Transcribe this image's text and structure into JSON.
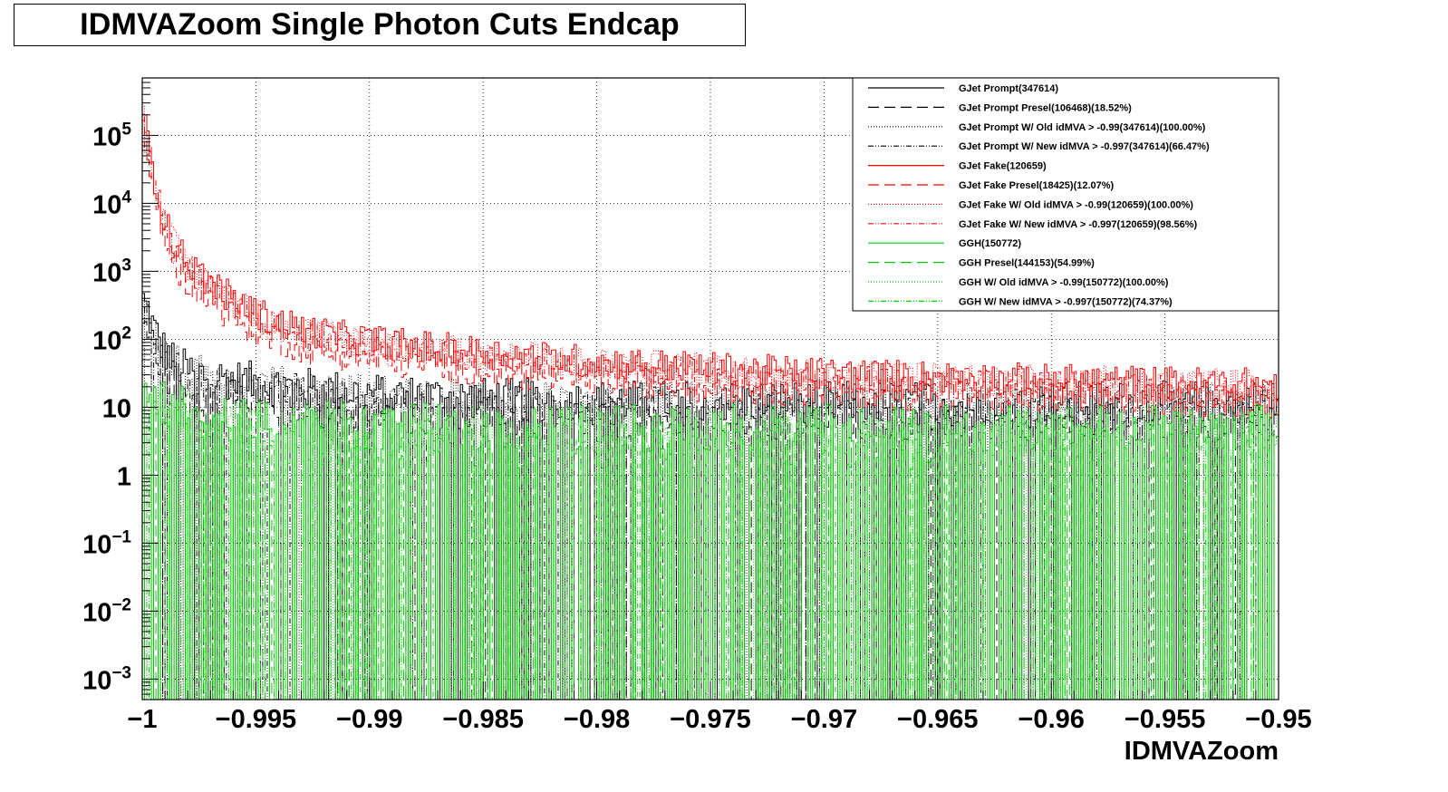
{
  "title": "IDMVAZoom Single Photon Cuts Endcap",
  "chart_data": {
    "type": "histogram",
    "title": "IDMVAZoom Single Photon Cuts Endcap",
    "xlabel": "IDMVAZoom",
    "ylabel": "",
    "xlim": [
      -1,
      -0.95
    ],
    "ylim": [
      0.0005,
      700000
    ],
    "y_scale": "log",
    "grid": true,
    "legend_position": "top-right",
    "x_ticks": [
      {
        "value": -1,
        "label": "−1"
      },
      {
        "value": -0.995,
        "label": "−0.995"
      },
      {
        "value": -0.99,
        "label": "−0.99"
      },
      {
        "value": -0.985,
        "label": "−0.985"
      },
      {
        "value": -0.98,
        "label": "−0.98"
      },
      {
        "value": -0.975,
        "label": "−0.975"
      },
      {
        "value": -0.97,
        "label": "−0.97"
      },
      {
        "value": -0.965,
        "label": "−0.965"
      },
      {
        "value": -0.96,
        "label": "−0.96"
      },
      {
        "value": -0.955,
        "label": "−0.955"
      },
      {
        "value": -0.95,
        "label": "−0.95"
      }
    ],
    "y_ticks": [
      {
        "value": 0.001,
        "base": "10",
        "exp": "−3"
      },
      {
        "value": 0.01,
        "base": "10",
        "exp": "−2"
      },
      {
        "value": 0.1,
        "base": "10",
        "exp": "−1"
      },
      {
        "value": 1,
        "base": "1",
        "exp": ""
      },
      {
        "value": 10,
        "base": "10",
        "exp": ""
      },
      {
        "value": 100,
        "base": "10",
        "exp": "2"
      },
      {
        "value": 1000,
        "base": "10",
        "exp": "3"
      },
      {
        "value": 10000,
        "base": "10",
        "exp": "4"
      },
      {
        "value": 100000,
        "base": "10",
        "exp": "5"
      }
    ],
    "series": [
      {
        "name": "GJet Prompt(347614)",
        "color": "#000000",
        "dash": "",
        "group": "prompt",
        "variant": 0
      },
      {
        "name": "GJet Prompt Presel(106468)(18.52%)",
        "color": "#000000",
        "dash": "12,6",
        "group": "prompt",
        "variant": 1
      },
      {
        "name": "GJet Prompt W/ Old idMVA > -0.99(347614)(100.00%)",
        "color": "#000000",
        "dash": "1,2",
        "group": "prompt",
        "variant": 2
      },
      {
        "name": "GJet Prompt W/ New idMVA > -0.997(347614)(66.47%)",
        "color": "#000000",
        "dash": "6,2,1,2,1,2",
        "group": "prompt",
        "variant": 3
      },
      {
        "name": "GJet Fake(120659)",
        "color": "#ff0000",
        "dash": "",
        "group": "fake",
        "variant": 0
      },
      {
        "name": "GJet Fake Presel(18425)(12.07%)",
        "color": "#ff0000",
        "dash": "12,6",
        "group": "fake",
        "variant": 1
      },
      {
        "name": "GJet Fake W/ Old idMVA > -0.99(120659)(100.00%)",
        "color": "#ff0000",
        "dash": "1,2",
        "group": "fake",
        "variant": 2
      },
      {
        "name": "GJet Fake W/ New idMVA > -0.997(120659)(98.56%)",
        "color": "#ff0000",
        "dash": "6,2,1,2,1,2",
        "group": "fake",
        "variant": 3
      },
      {
        "name": "GGH(150772)",
        "color": "#00cc00",
        "dash": "",
        "group": "ggh",
        "variant": 0
      },
      {
        "name": "GGH Presel(144153)(54.99%)",
        "color": "#00cc00",
        "dash": "12,6",
        "group": "ggh",
        "variant": 1
      },
      {
        "name": "GGH W/ Old idMVA > -0.99(150772)(100.00%)",
        "color": "#00cc00",
        "dash": "1,2",
        "group": "ggh",
        "variant": 2
      },
      {
        "name": "GGH W/ New idMVA > -0.997(150772)(74.37%)",
        "color": "#00cc00",
        "dash": "6,2,1,2,1,2",
        "group": "ggh",
        "variant": 3
      }
    ]
  }
}
